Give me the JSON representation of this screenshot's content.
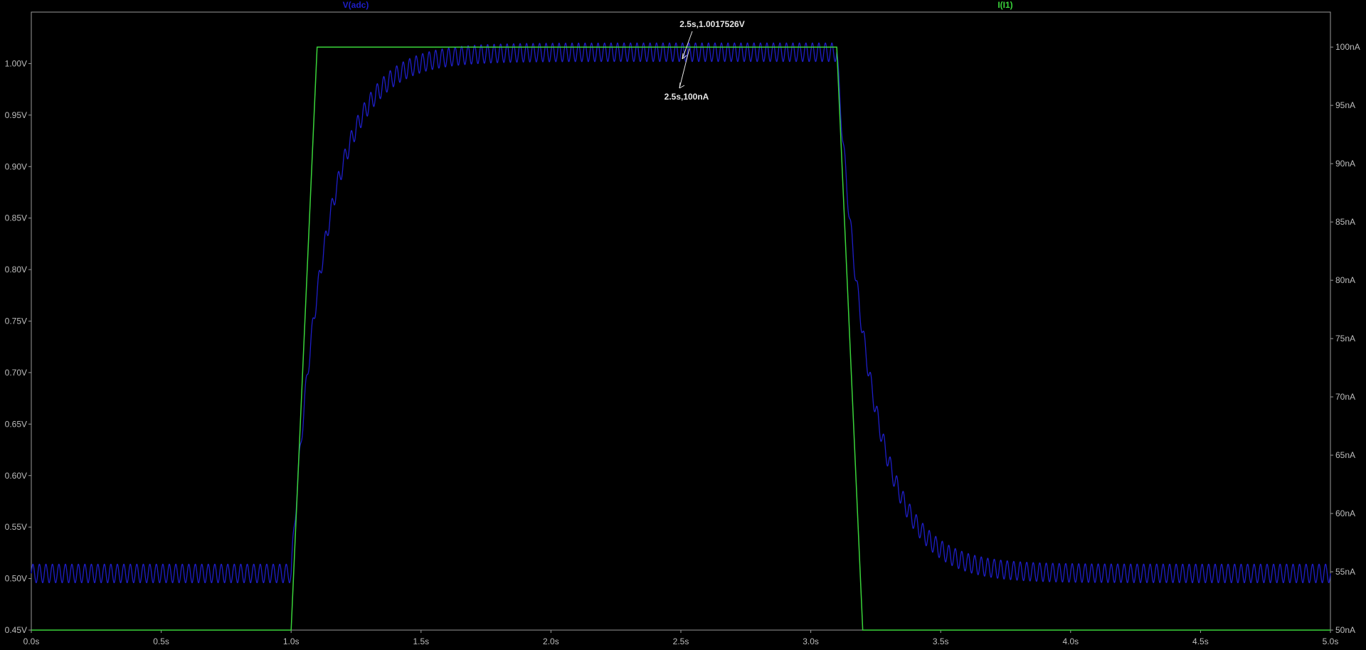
{
  "chart_data": {
    "type": "line",
    "xlabel": "",
    "xlim": [
      0,
      5
    ],
    "x_ticks": [
      "0.0s",
      "0.5s",
      "1.0s",
      "1.5s",
      "2.0s",
      "2.5s",
      "3.0s",
      "3.5s",
      "4.0s",
      "4.5s",
      "5.0s"
    ],
    "y_left": {
      "ylim": [
        0.45,
        1.05
      ],
      "ticks": [
        "0.45V",
        "0.50V",
        "0.55V",
        "0.60V",
        "0.65V",
        "0.70V",
        "0.75V",
        "0.80V",
        "0.85V",
        "0.90V",
        "0.95V",
        "1.00V"
      ],
      "tick_values": [
        0.45,
        0.5,
        0.55,
        0.6,
        0.65,
        0.7,
        0.75,
        0.8,
        0.85,
        0.9,
        0.95,
        1.0
      ]
    },
    "y_right": {
      "ylim": [
        50,
        103
      ],
      "ticks": [
        "50nA",
        "55nA",
        "60nA",
        "65nA",
        "70nA",
        "75nA",
        "80nA",
        "85nA",
        "90nA",
        "95nA",
        "100nA"
      ],
      "tick_values": [
        50,
        55,
        60,
        65,
        70,
        75,
        80,
        85,
        90,
        95,
        100
      ]
    },
    "grid": false,
    "background": "#000000",
    "series": [
      {
        "name": "V(adc)",
        "axis": "left",
        "color": "#1e1ec8",
        "envelope": {
          "low_level": 0.505,
          "high_level": 1.011,
          "rise_start": 1.0,
          "rise_tau": 0.13,
          "fall_start": 3.1,
          "fall_tau": 0.13,
          "ripple_amplitude": 0.009,
          "ripple_frequency": 40
        }
      },
      {
        "name": "I(I1)",
        "axis": "right",
        "color": "#3ad43a",
        "x": [
          0.0,
          1.0,
          1.1,
          3.1,
          3.2,
          5.0
        ],
        "y": [
          50,
          50,
          100,
          100,
          50,
          50
        ]
      }
    ],
    "annotations": [
      {
        "text": "2.5s,1.0017526V",
        "x": 2.5,
        "y": 1.0017526,
        "axis": "left"
      },
      {
        "text": "2.5s,100nA",
        "x": 2.5,
        "y": 100,
        "axis": "right"
      }
    ]
  }
}
